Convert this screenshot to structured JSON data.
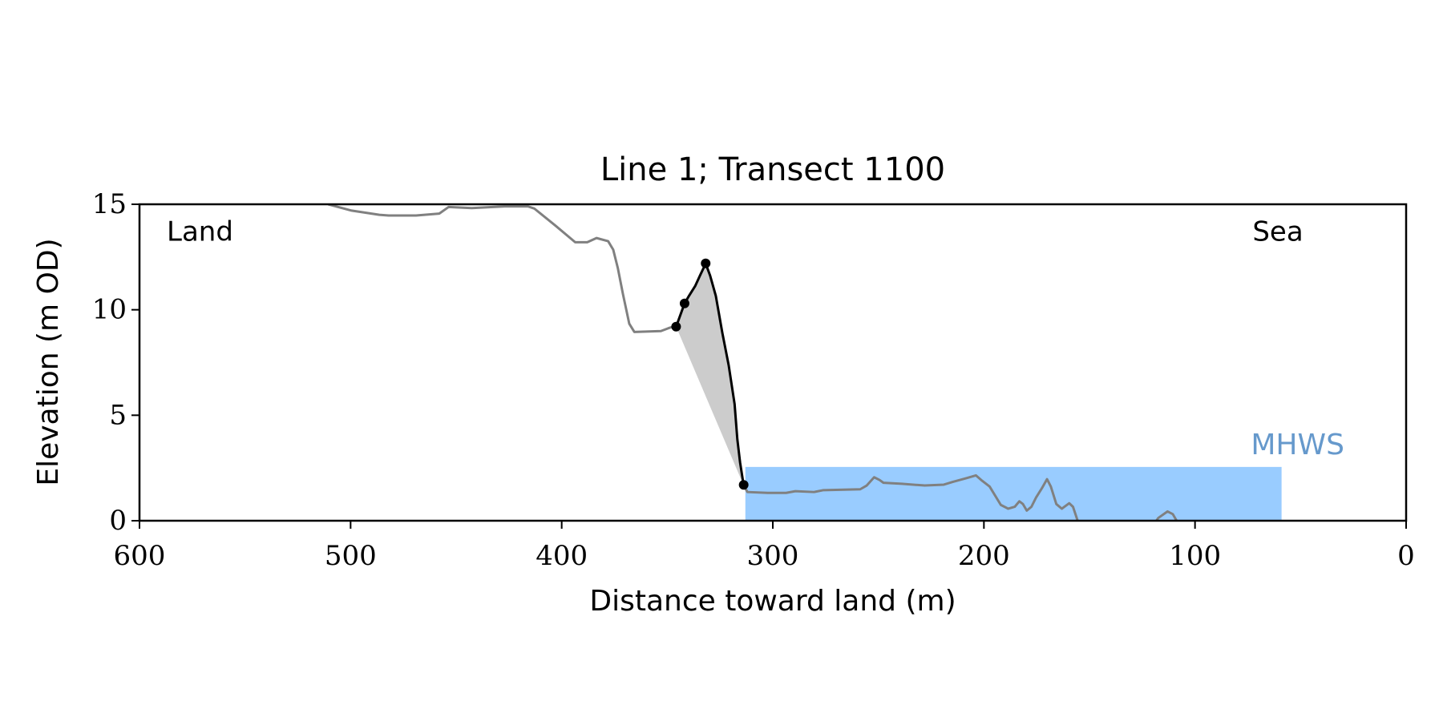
{
  "chart_data": {
    "type": "line",
    "title": "Line 1; Transect 1100",
    "xlabel": "Distance toward land (m)",
    "ylabel": "Elevation (m OD)",
    "xlim": [
      600,
      0
    ],
    "ylim": [
      0,
      15
    ],
    "xticks": [
      600,
      500,
      400,
      300,
      200,
      100,
      0
    ],
    "yticks": [
      0,
      5,
      10,
      15
    ],
    "annotations": [
      "Land",
      "Sea"
    ],
    "band": {
      "label": "MHWS",
      "x": [
        313,
        59
      ],
      "top": 2.55,
      "color": "#99ccff",
      "label_color": "#6699cc"
    },
    "series": [
      {
        "style": "line",
        "color": "#808080",
        "x": [
          510.6,
          499.5,
          486.4,
          482,
          469,
          458,
          453.6,
          442.6,
          427,
          416,
          413,
          403,
          393.6,
          387.9,
          383.5,
          378,
          375.6,
          373.4,
          371,
          368,
          365.6,
          353,
          349.6,
          345.8,
          null,
          313.8,
          312,
          302.4,
          293.7,
          289.3,
          280.5,
          276,
          258.6,
          255.5,
          252,
          249.4,
          247.6,
          238.9,
          228,
          219,
          214.8,
          208.2,
          203.8,
          200.8,
          197.3,
          192,
          188.5,
          185.4,
          183.2,
          181.5,
          179.7,
          177.5,
          175.3,
          172.3,
          170.1,
          168.3,
          165.7,
          163.1,
          159.6,
          157.8,
          155.6,
          null,
          118.3,
          117.4,
          113,
          110.5,
          108.7
        ],
        "values": [
          15.0,
          14.7,
          14.5,
          14.47,
          14.47,
          14.56,
          14.87,
          14.82,
          14.9,
          14.9,
          14.8,
          13.99,
          13.2,
          13.2,
          13.4,
          13.25,
          12.85,
          11.97,
          10.75,
          9.34,
          8.95,
          8.99,
          9.12,
          9.25,
          null,
          1.67,
          1.36,
          1.32,
          1.32,
          1.4,
          1.36,
          1.45,
          1.49,
          1.67,
          2.06,
          1.93,
          1.8,
          1.75,
          1.67,
          1.71,
          1.84,
          2.02,
          2.15,
          1.89,
          1.62,
          0.75,
          0.57,
          0.66,
          0.92,
          0.79,
          0.48,
          0.66,
          1.1,
          1.58,
          1.97,
          1.62,
          0.79,
          0.57,
          0.83,
          0.66,
          0,
          null,
          0,
          0.13,
          0.44,
          0.31,
          0
        ]
      },
      {
        "style": "line",
        "color": "#000000",
        "fill": "#cccccc",
        "x": [
          345.8,
          341.8,
          339.7,
          336.7,
          334.5,
          331.8,
          329.7,
          327,
          323.9,
          320.9,
          318.1,
          316.8,
          315.5,
          313.8
        ],
        "values": [
          9.2,
          10.3,
          10.66,
          11.14,
          11.62,
          12.19,
          11.62,
          10.66,
          8.9,
          7.37,
          5.53,
          3.86,
          2.76,
          1.67
        ]
      },
      {
        "style": "markers",
        "color": "#000000",
        "x": [
          345.8,
          341.8,
          331.8,
          313.8
        ],
        "values": [
          9.2,
          10.3,
          12.2,
          1.7
        ]
      }
    ]
  }
}
